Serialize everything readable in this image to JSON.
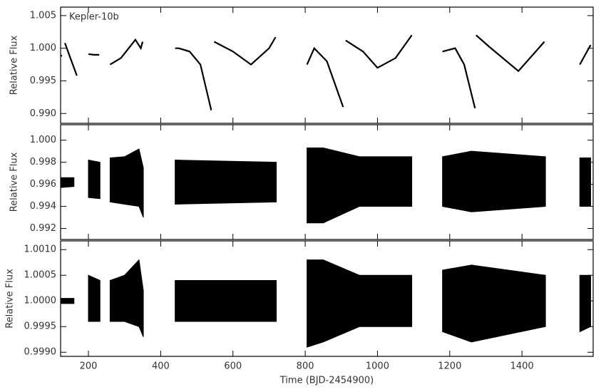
{
  "chart_data": [
    {
      "type": "line",
      "annotation": "Kepler-10b",
      "ylabel": "Relative Flux",
      "color": "#000000",
      "xlim": [
        123,
        1597
      ],
      "xticks": [
        200,
        400,
        600,
        800,
        1000,
        1200,
        1400
      ],
      "ylim": [
        0.9885,
        1.0063
      ],
      "yticks": [
        {
          "value": 0.99,
          "label": "0.990"
        },
        0.995,
        {
          "value": 1.0,
          "label": "1.000"
        },
        1.005
      ],
      "segments": [
        {
          "x": [
            120,
            127
          ],
          "values": [
            0.999,
            0.9988
          ]
        },
        {
          "x": [
            135,
            150,
            168
          ],
          "values": [
            1.0008,
            0.9985,
            0.9958
          ]
        },
        {
          "x": [
            200,
            215,
            230
          ],
          "values": [
            0.9991,
            0.999,
            0.999
          ]
        },
        {
          "x": [
            260,
            290,
            330,
            345,
            350
          ],
          "values": [
            0.9975,
            0.9985,
            1.0013,
            1.0,
            1.001
          ]
        },
        {
          "x": [
            440,
            450,
            480,
            510,
            540
          ],
          "values": [
            1.0,
            1.0,
            0.9995,
            0.9975,
            0.9905
          ]
        },
        {
          "x": [
            548,
            600,
            650,
            700,
            718
          ],
          "values": [
            1.001,
            0.9995,
            0.9975,
            1.0,
            1.0017
          ]
        },
        {
          "x": [
            805,
            825,
            860,
            905
          ],
          "values": [
            0.9975,
            1.0,
            0.998,
            0.991
          ]
        },
        {
          "x": [
            912,
            960,
            1000,
            1050,
            1095
          ],
          "values": [
            1.0012,
            0.9995,
            0.997,
            0.9985,
            1.002
          ]
        },
        {
          "x": [
            1180,
            1215,
            1240,
            1270
          ],
          "values": [
            0.9995,
            1.0,
            0.9975,
            0.9908
          ]
        },
        {
          "x": [
            1273,
            1310,
            1390,
            1430,
            1462
          ],
          "values": [
            1.002,
            1.0002,
            0.9965,
            0.999,
            1.001
          ]
        },
        {
          "x": [
            1560,
            1580,
            1590
          ],
          "values": [
            0.9975,
            0.9995,
            1.0005
          ]
        }
      ]
    },
    {
      "type": "band",
      "ylabel": "Relative Flux",
      "color": "#000000",
      "xlim": [
        123,
        1597
      ],
      "xticks": [
        200,
        400,
        600,
        800,
        1000,
        1200,
        1400
      ],
      "ylim": [
        0.991,
        1.0014
      ],
      "yticks": [
        0.992,
        0.994,
        0.996,
        0.998,
        {
          "value": 1.0,
          "label": "1.000"
        }
      ],
      "segments": [
        {
          "x": [
            120,
            160
          ],
          "low": [
            0.9957,
            0.9958
          ],
          "high": [
            0.9966,
            0.9966
          ]
        },
        {
          "x": [
            200,
            232
          ],
          "low": [
            0.9948,
            0.9947
          ],
          "high": [
            0.9982,
            0.998
          ]
        },
        {
          "x": [
            260,
            300,
            340,
            352
          ],
          "low": [
            0.9944,
            0.9942,
            0.994,
            0.993
          ],
          "high": [
            0.9984,
            0.9985,
            0.9992,
            0.9975
          ]
        },
        {
          "x": [
            440,
            580,
            720
          ],
          "low": [
            0.9942,
            0.9943,
            0.9944
          ],
          "high": [
            0.9982,
            0.9981,
            0.998
          ]
        },
        {
          "x": [
            805,
            850,
            950,
            1095
          ],
          "low": [
            0.9925,
            0.9925,
            0.994,
            0.994
          ],
          "high": [
            0.9993,
            0.9993,
            0.9985,
            0.9985
          ]
        },
        {
          "x": [
            1180,
            1260,
            1465
          ],
          "low": [
            0.994,
            0.9935,
            0.994
          ],
          "high": [
            0.9985,
            0.999,
            0.9985
          ]
        },
        {
          "x": [
            1560,
            1590
          ],
          "low": [
            0.994,
            0.994
          ],
          "high": [
            0.9984,
            0.9984
          ]
        }
      ]
    },
    {
      "type": "band",
      "ylabel": "Relative Flux",
      "xlabel": "Time (BJD-2454900)",
      "color": "#000000",
      "xlim": [
        123,
        1597
      ],
      "xticks": [
        200,
        400,
        600,
        800,
        1000,
        1200,
        1400
      ],
      "ylim": [
        0.99892,
        1.00117
      ],
      "yticks": [
        {
          "value": 0.999,
          "label": "0.9990"
        },
        0.9995,
        {
          "value": 1.0,
          "label": "1.0000"
        },
        {
          "value": 1.0005,
          "label": "1.0005"
        },
        {
          "value": 1.001,
          "label": "1.0010"
        }
      ],
      "segments": [
        {
          "x": [
            120,
            160
          ],
          "low": [
            0.99995,
            0.99995
          ],
          "high": [
            1.00005,
            1.00005
          ]
        },
        {
          "x": [
            200,
            232
          ],
          "low": [
            0.9996,
            0.9996
          ],
          "high": [
            1.0005,
            1.0004
          ]
        },
        {
          "x": [
            260,
            300,
            340,
            352
          ],
          "low": [
            0.9996,
            0.9996,
            0.9995,
            0.9993
          ],
          "high": [
            1.0004,
            1.0005,
            1.0008,
            1.0002
          ]
        },
        {
          "x": [
            440,
            580,
            720
          ],
          "low": [
            0.9996,
            0.9996,
            0.9996
          ],
          "high": [
            1.0004,
            1.0004,
            1.0004
          ]
        },
        {
          "x": [
            805,
            850,
            950,
            1095
          ],
          "low": [
            0.9991,
            0.9992,
            0.9995,
            0.9995
          ],
          "high": [
            1.0008,
            1.0008,
            1.0005,
            1.0005
          ]
        },
        {
          "x": [
            1180,
            1260,
            1465
          ],
          "low": [
            0.9994,
            0.9992,
            0.9995
          ],
          "high": [
            1.0006,
            1.0007,
            1.0005
          ]
        },
        {
          "x": [
            1560,
            1590
          ],
          "low": [
            0.9994,
            0.9995
          ],
          "high": [
            1.0005,
            1.0005
          ]
        }
      ]
    }
  ]
}
